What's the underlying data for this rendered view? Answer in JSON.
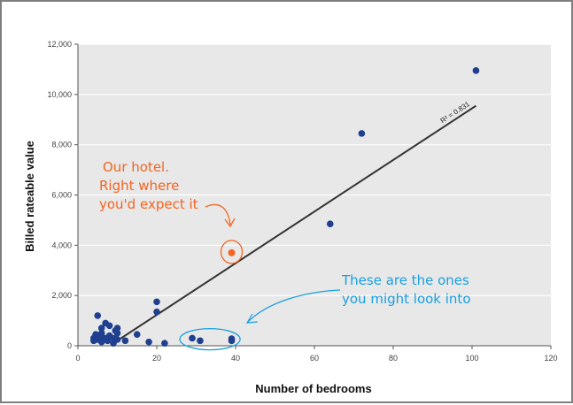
{
  "colors": {
    "background": "#ffffff",
    "frame": "#7f7f7f",
    "plot_area": "#e8e8e8",
    "gridline": "#ffffff",
    "point": "#1f3f8f",
    "highlight": "#f26522",
    "trendline": "#333333",
    "annotation_blue": "#1a9fe0"
  },
  "chart_data": {
    "type": "scatter",
    "title": "",
    "xlabel": "Number of bedrooms",
    "ylabel": "Billed rateable value",
    "xlim": [
      0,
      120
    ],
    "ylim": [
      0,
      12000
    ],
    "x_ticks": [
      "0",
      "20",
      "40",
      "60",
      "80",
      "100",
      "120"
    ],
    "y_ticks": [
      "0",
      "2,000",
      "4,000",
      "6,000",
      "8,000",
      "10,000",
      "12,000"
    ],
    "grid": "horizontal",
    "legend": "none",
    "points": [
      {
        "x": 4,
        "y": 200
      },
      {
        "x": 4,
        "y": 300
      },
      {
        "x": 4.5,
        "y": 450
      },
      {
        "x": 5,
        "y": 250
      },
      {
        "x": 5,
        "y": 1200
      },
      {
        "x": 5.5,
        "y": 350
      },
      {
        "x": 6,
        "y": 150
      },
      {
        "x": 6,
        "y": 500
      },
      {
        "x": 6,
        "y": 700
      },
      {
        "x": 7,
        "y": 300
      },
      {
        "x": 7,
        "y": 900
      },
      {
        "x": 7.5,
        "y": 200
      },
      {
        "x": 8,
        "y": 800
      },
      {
        "x": 8,
        "y": 400
      },
      {
        "x": 9,
        "y": 300
      },
      {
        "x": 9,
        "y": 100
      },
      {
        "x": 9.5,
        "y": 600
      },
      {
        "x": 10,
        "y": 250
      },
      {
        "x": 10,
        "y": 500
      },
      {
        "x": 10,
        "y": 700
      },
      {
        "x": 12,
        "y": 200
      },
      {
        "x": 15,
        "y": 450
      },
      {
        "x": 18,
        "y": 150
      },
      {
        "x": 20,
        "y": 1750
      },
      {
        "x": 20,
        "y": 1350
      },
      {
        "x": 22,
        "y": 100
      },
      {
        "x": 29,
        "y": 300
      },
      {
        "x": 31,
        "y": 200
      },
      {
        "x": 39,
        "y": 200
      },
      {
        "x": 39,
        "y": 280
      },
      {
        "x": 64,
        "y": 4850
      },
      {
        "x": 72,
        "y": 8450
      },
      {
        "x": 101,
        "y": 10950
      }
    ],
    "highlight_point": {
      "x": 39,
      "y": 3700,
      "label": "Our hotel"
    },
    "trendline": {
      "label": "R² = 0.831",
      "x_start": 9,
      "y_start": 100,
      "x_end": 101,
      "y_end": 9550
    }
  },
  "annotations": {
    "hotel_note": [
      "Our hotel.",
      "Right where",
      "you'd expect it"
    ],
    "outliers_note": [
      "These are the ones",
      "you might look into"
    ]
  }
}
